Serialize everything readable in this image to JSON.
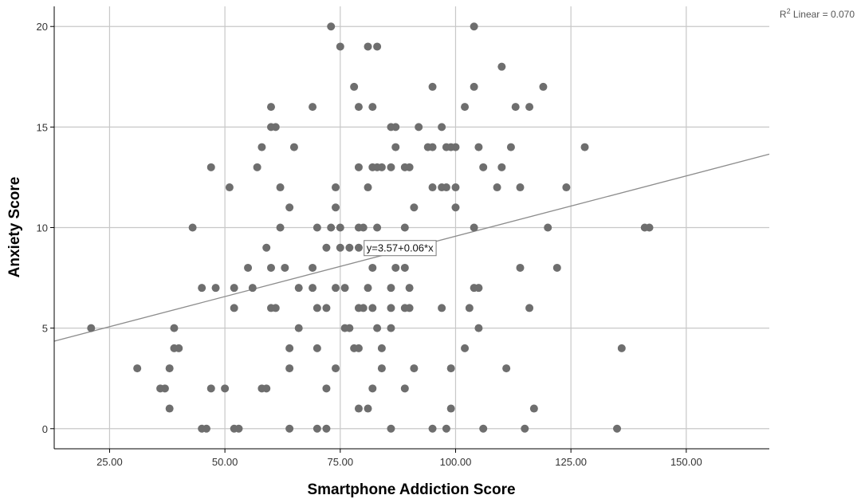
{
  "chart_data": {
    "type": "scatter",
    "xlabel": "Smartphone Addiction Score",
    "ylabel": "Anxiety Score",
    "xlim": [
      13,
      168
    ],
    "ylim": [
      -1,
      21
    ],
    "x_ticks": [
      "25.00",
      "50.00",
      "75.00",
      "100.00",
      "125.00",
      "150.00"
    ],
    "y_ticks": [
      "0",
      "5",
      "10",
      "15",
      "20"
    ],
    "grid": true,
    "fit_line": {
      "intercept": 3.57,
      "slope": 0.06,
      "label": "y=3.57+0.06*x",
      "label_at": [
        80,
        9
      ]
    },
    "r2_label": {
      "prefix": "R",
      "sup": "2",
      "text": " Linear = 0.070"
    },
    "colors": {
      "point": "#6e6e6e",
      "grid": "#c8c8c8",
      "fit": "#8c8c8c",
      "axis": "#000000"
    },
    "points": [
      [
        21,
        5
      ],
      [
        31,
        3
      ],
      [
        36,
        2
      ],
      [
        37,
        2
      ],
      [
        38,
        3
      ],
      [
        38,
        1
      ],
      [
        39,
        5
      ],
      [
        39,
        4
      ],
      [
        40,
        4
      ],
      [
        43,
        10
      ],
      [
        45,
        7
      ],
      [
        45,
        0
      ],
      [
        46,
        0
      ],
      [
        47,
        13
      ],
      [
        47,
        2
      ],
      [
        48,
        7
      ],
      [
        50,
        2
      ],
      [
        51,
        12
      ],
      [
        52,
        7
      ],
      [
        52,
        6
      ],
      [
        52,
        0
      ],
      [
        53,
        0
      ],
      [
        55,
        8
      ],
      [
        56,
        7
      ],
      [
        57,
        13
      ],
      [
        58,
        14
      ],
      [
        58,
        2
      ],
      [
        59,
        9
      ],
      [
        59,
        2
      ],
      [
        60,
        16
      ],
      [
        60,
        15
      ],
      [
        60,
        8
      ],
      [
        60,
        6
      ],
      [
        61,
        15
      ],
      [
        61,
        6
      ],
      [
        62,
        12
      ],
      [
        62,
        10
      ],
      [
        63,
        8
      ],
      [
        64,
        11
      ],
      [
        64,
        4
      ],
      [
        64,
        3
      ],
      [
        64,
        0
      ],
      [
        65,
        14
      ],
      [
        66,
        7
      ],
      [
        66,
        5
      ],
      [
        69,
        16
      ],
      [
        69,
        8
      ],
      [
        69,
        7
      ],
      [
        70,
        10
      ],
      [
        70,
        6
      ],
      [
        70,
        4
      ],
      [
        70,
        0
      ],
      [
        72,
        9
      ],
      [
        72,
        6
      ],
      [
        72,
        2
      ],
      [
        72,
        0
      ],
      [
        73,
        20
      ],
      [
        73,
        10
      ],
      [
        74,
        12
      ],
      [
        74,
        11
      ],
      [
        74,
        7
      ],
      [
        74,
        3
      ],
      [
        75,
        19
      ],
      [
        75,
        10
      ],
      [
        75,
        9
      ],
      [
        76,
        7
      ],
      [
        76,
        5
      ],
      [
        77,
        9
      ],
      [
        77,
        5
      ],
      [
        78,
        17
      ],
      [
        78,
        4
      ],
      [
        79,
        16
      ],
      [
        79,
        13
      ],
      [
        79,
        10
      ],
      [
        79,
        9
      ],
      [
        79,
        6
      ],
      [
        79,
        4
      ],
      [
        79,
        1
      ],
      [
        80,
        10
      ],
      [
        80,
        6
      ],
      [
        81,
        19
      ],
      [
        81,
        12
      ],
      [
        81,
        7
      ],
      [
        81,
        1
      ],
      [
        82,
        16
      ],
      [
        82,
        13
      ],
      [
        82,
        8
      ],
      [
        82,
        6
      ],
      [
        82,
        2
      ],
      [
        83,
        19
      ],
      [
        83,
        13
      ],
      [
        83,
        10
      ],
      [
        83,
        5
      ],
      [
        84,
        13
      ],
      [
        84,
        4
      ],
      [
        84,
        3
      ],
      [
        86,
        15
      ],
      [
        86,
        13
      ],
      [
        86,
        7
      ],
      [
        86,
        6
      ],
      [
        86,
        5
      ],
      [
        86,
        0
      ],
      [
        87,
        15
      ],
      [
        87,
        14
      ],
      [
        87,
        8
      ],
      [
        89,
        13
      ],
      [
        89,
        10
      ],
      [
        89,
        8
      ],
      [
        89,
        6
      ],
      [
        89,
        2
      ],
      [
        90,
        13
      ],
      [
        90,
        7
      ],
      [
        90,
        6
      ],
      [
        91,
        11
      ],
      [
        91,
        3
      ],
      [
        92,
        15
      ],
      [
        94,
        14
      ],
      [
        95,
        17
      ],
      [
        95,
        14
      ],
      [
        95,
        12
      ],
      [
        95,
        0
      ],
      [
        97,
        15
      ],
      [
        97,
        12
      ],
      [
        97,
        6
      ],
      [
        98,
        14
      ],
      [
        98,
        12
      ],
      [
        98,
        0
      ],
      [
        99,
        14
      ],
      [
        99,
        3
      ],
      [
        99,
        1
      ],
      [
        100,
        14
      ],
      [
        100,
        12
      ],
      [
        100,
        11
      ],
      [
        102,
        16
      ],
      [
        102,
        4
      ],
      [
        103,
        6
      ],
      [
        104,
        20
      ],
      [
        104,
        17
      ],
      [
        104,
        10
      ],
      [
        104,
        7
      ],
      [
        105,
        14
      ],
      [
        105,
        7
      ],
      [
        105,
        5
      ],
      [
        106,
        13
      ],
      [
        106,
        0
      ],
      [
        109,
        12
      ],
      [
        110,
        18
      ],
      [
        110,
        13
      ],
      [
        111,
        3
      ],
      [
        112,
        14
      ],
      [
        113,
        16
      ],
      [
        114,
        12
      ],
      [
        114,
        8
      ],
      [
        115,
        0
      ],
      [
        116,
        16
      ],
      [
        116,
        6
      ],
      [
        117,
        1
      ],
      [
        119,
        17
      ],
      [
        120,
        10
      ],
      [
        122,
        8
      ],
      [
        124,
        12
      ],
      [
        128,
        14
      ],
      [
        135,
        0
      ],
      [
        136,
        4
      ],
      [
        141,
        10
      ],
      [
        142,
        10
      ]
    ]
  }
}
